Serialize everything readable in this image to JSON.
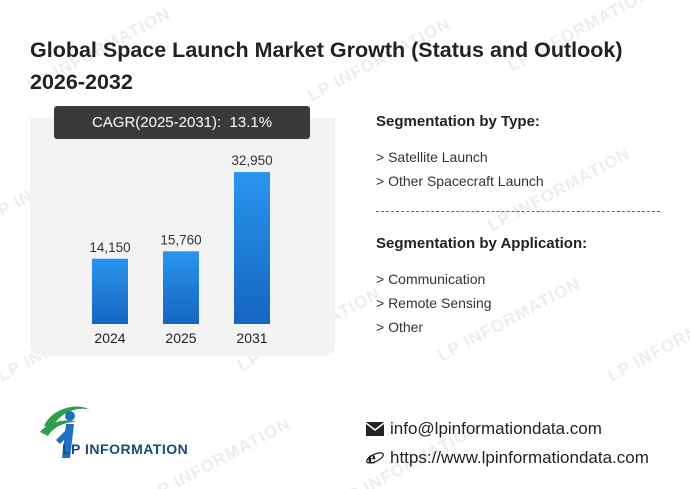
{
  "header": {
    "title": "Global Space Launch Market Growth (Status and Outlook) 2026-2032"
  },
  "cagr": {
    "label": "CAGR(2025-2031):",
    "value": "13.1%"
  },
  "chart_data": {
    "type": "bar",
    "categories": [
      "2024",
      "2025",
      "2031"
    ],
    "values": [
      14150,
      15760,
      32950
    ],
    "value_labels": [
      "14,150",
      "15,760",
      "32,950"
    ],
    "ylim": [
      0,
      36000
    ],
    "grid": false,
    "bar_color": "#1e88e5"
  },
  "segments": {
    "type": {
      "title": "Segmentation by Type:",
      "items": [
        "> Satellite Launch",
        "> Other Spacecraft Launch"
      ]
    },
    "application": {
      "title": "Segmentation by Application:",
      "items": [
        "> Communication",
        "> Remote Sensing",
        "> Other"
      ]
    }
  },
  "brand": {
    "name": "LP INFORMATION",
    "watermark": "LP INFORMATION"
  },
  "contact": {
    "email": "info@lpinformationdata.com",
    "website": "https://www.lpinformationdata.com"
  },
  "icons": {
    "email": "envelope-icon",
    "website": "internet-explorer-icon"
  }
}
